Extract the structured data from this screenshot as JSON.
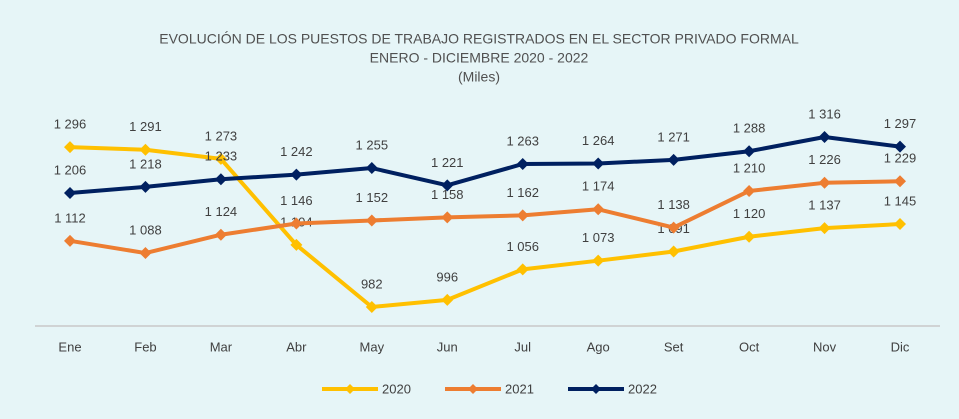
{
  "chart_data": {
    "type": "line",
    "title": "EVOLUCIÓN DE LOS PUESTOS DE TRABAJO REGISTRADOS EN EL SECTOR PRIVADO FORMAL",
    "subtitle": "ENERO - DICIEMBRE 2020 - 2022",
    "unit_label": "(Miles)",
    "categories": [
      "Ene",
      "Feb",
      "Mar",
      "Abr",
      "May",
      "Jun",
      "Jul",
      "Ago",
      "Set",
      "Oct",
      "Nov",
      "Dic"
    ],
    "series": [
      {
        "name": "2020",
        "color": "#ffc000",
        "values": [
          1296,
          1291,
          1273,
          1104,
          982,
          996,
          1056,
          1073,
          1091,
          1120,
          1137,
          1145
        ],
        "value_labels": [
          "1 296",
          "1 291",
          "1 273",
          "1 104",
          "982",
          "996",
          "1 056",
          "1 073",
          "1 091",
          "1 120",
          "1 137",
          "1 145"
        ]
      },
      {
        "name": "2021",
        "color": "#ed7d31",
        "values": [
          1112,
          1088,
          1124,
          1146,
          1152,
          1158,
          1162,
          1174,
          1138,
          1210,
          1226,
          1229
        ],
        "value_labels": [
          "1 112",
          "1 088",
          "1 124",
          "1 146",
          "1 152",
          "1 158",
          "1 162",
          "1 174",
          "1 138",
          "1 210",
          "1 226",
          "1 229"
        ]
      },
      {
        "name": "2022",
        "color": "#002060",
        "values": [
          1206,
          1218,
          1233,
          1242,
          1255,
          1221,
          1263,
          1264,
          1271,
          1288,
          1316,
          1297
        ],
        "value_labels": [
          "1 206",
          "1 218",
          "1 233",
          "1 242",
          "1 255",
          "1 221",
          "1 263",
          "1 264",
          "1 271",
          "1 288",
          "1 316",
          "1 297"
        ]
      }
    ],
    "legend": "bottom"
  }
}
